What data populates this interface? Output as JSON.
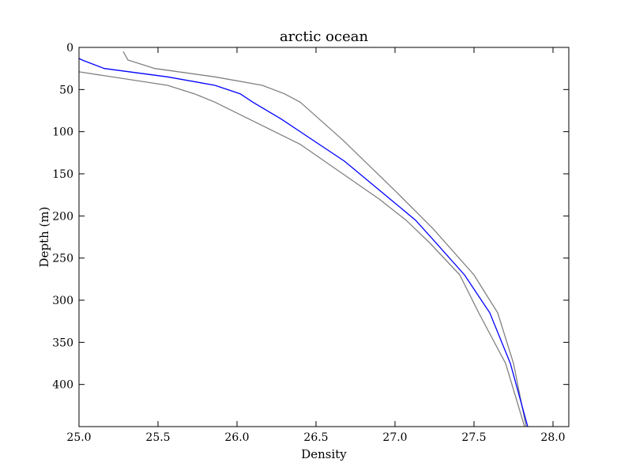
{
  "chart_data": {
    "type": "line",
    "title": "arctic ocean",
    "xlabel": "Density",
    "ylabel": "Depth (m)",
    "xlim": [
      25.0,
      28.1
    ],
    "ylim": [
      0,
      450
    ],
    "y_inverted": true,
    "grid": false,
    "x_ticks": [
      {
        "value": 25.0,
        "label": "25.0"
      },
      {
        "value": 25.5,
        "label": "25.5"
      },
      {
        "value": 26.0,
        "label": "26.0"
      },
      {
        "value": 26.5,
        "label": "26.5"
      },
      {
        "value": 27.0,
        "label": "27.0"
      },
      {
        "value": 27.5,
        "label": "27.5"
      },
      {
        "value": 28.0,
        "label": "28.0"
      }
    ],
    "y_ticks": [
      {
        "value": 0,
        "label": "0"
      },
      {
        "value": 50,
        "label": "50"
      },
      {
        "value": 100,
        "label": "100"
      },
      {
        "value": 150,
        "label": "150"
      },
      {
        "value": 200,
        "label": "200"
      },
      {
        "value": 250,
        "label": "250"
      },
      {
        "value": 300,
        "label": "300"
      },
      {
        "value": 350,
        "label": "350"
      },
      {
        "value": 400,
        "label": "400"
      }
    ],
    "series": [
      {
        "color": "#808080",
        "points": [
          [
            25.28,
            5
          ],
          [
            25.31,
            15
          ],
          [
            25.48,
            25
          ],
          [
            25.86,
            35
          ],
          [
            26.16,
            45
          ],
          [
            26.3,
            55
          ],
          [
            26.4,
            65
          ],
          [
            26.67,
            110
          ],
          [
            27.0,
            170
          ],
          [
            27.24,
            215
          ],
          [
            27.5,
            270
          ],
          [
            27.65,
            315
          ],
          [
            27.75,
            375
          ],
          [
            27.83,
            450
          ]
        ]
      },
      {
        "color": "#0000ff",
        "points": [
          [
            25.0,
            13
          ],
          [
            25.02,
            15
          ],
          [
            25.16,
            25
          ],
          [
            25.56,
            35
          ],
          [
            25.86,
            45
          ],
          [
            26.02,
            55
          ],
          [
            26.1,
            65
          ],
          [
            26.28,
            85
          ],
          [
            26.68,
            135
          ],
          [
            27.13,
            205
          ],
          [
            27.25,
            230
          ],
          [
            27.44,
            270
          ],
          [
            27.6,
            315
          ],
          [
            27.73,
            375
          ],
          [
            27.84,
            450
          ]
        ]
      },
      {
        "color": "#808080",
        "points": [
          [
            25.0,
            29
          ],
          [
            25.56,
            45
          ],
          [
            25.73,
            55
          ],
          [
            25.86,
            65
          ],
          [
            26.4,
            115
          ],
          [
            26.9,
            180
          ],
          [
            27.07,
            205
          ],
          [
            27.22,
            232
          ],
          [
            27.41,
            270
          ],
          [
            27.53,
            315
          ],
          [
            27.7,
            375
          ],
          [
            27.82,
            450
          ]
        ]
      }
    ]
  }
}
